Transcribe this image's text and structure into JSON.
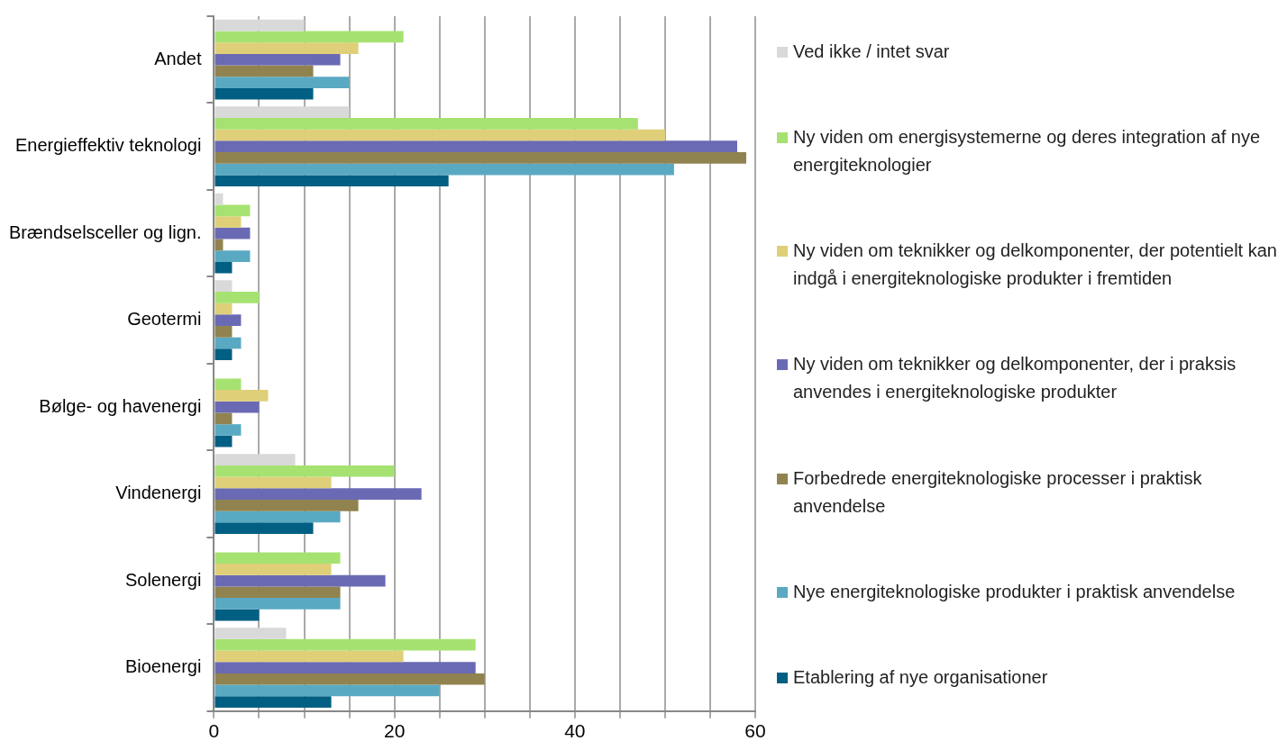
{
  "chart_data": {
    "type": "bar",
    "orientation": "horizontal",
    "categories": [
      "Andet",
      "Energieffektiv teknologi",
      "Brændselsceller og lign.",
      "Geotermi",
      "Bølge- og havenergi",
      "Vindenergi",
      "Solenergi",
      "Bioenergi"
    ],
    "series": [
      {
        "name": "Ved ikke / intet svar",
        "color": "#d9d9d9",
        "values": [
          10,
          15,
          1,
          2,
          0,
          9,
          0,
          8
        ]
      },
      {
        "name": "Ny viden om energisystemerne og deres integration af nye energiteknologier",
        "color": "#a6e271",
        "values": [
          21,
          47,
          4,
          5,
          3,
          20,
          14,
          29
        ]
      },
      {
        "name": "Ny viden om teknikker og delkomponenter, der potentielt kan indgå i energiteknologiske produkter i fremtiden",
        "color": "#dfcf79",
        "values": [
          16,
          50,
          3,
          2,
          6,
          13,
          13,
          21
        ]
      },
      {
        "name": "Ny viden om teknikker og delkomponenter, der i praksis anvendes i energiteknologiske produkter",
        "color": "#6a6ab4",
        "values": [
          14,
          58,
          4,
          3,
          5,
          23,
          19,
          29
        ]
      },
      {
        "name": "Forbedrede energiteknologiske processer i praktisk anvendelse",
        "color": "#908350",
        "values": [
          11,
          59,
          1,
          2,
          2,
          16,
          14,
          30
        ]
      },
      {
        "name": "Nye energiteknologiske produkter i praktisk anvendelse",
        "color": "#5aa9c3",
        "values": [
          15,
          51,
          4,
          3,
          3,
          14,
          14,
          25
        ]
      },
      {
        "name": "Etablering af nye organisationer",
        "color": "#005f82",
        "values": [
          11,
          26,
          2,
          2,
          2,
          11,
          5,
          13
        ]
      }
    ],
    "xlim": [
      0,
      60
    ],
    "xticks": [
      0,
      {
        "value": 5,
        "label": null
      },
      {
        "value": 10,
        "label": null
      },
      {
        "value": 15,
        "label": null
      },
      20,
      {
        "value": 25,
        "label": null
      },
      {
        "value": 30,
        "label": null
      },
      {
        "value": 35,
        "label": null
      },
      40,
      {
        "value": 45,
        "label": null
      },
      {
        "value": 50,
        "label": null
      },
      {
        "value": 55,
        "label": null
      },
      60
    ],
    "grid": "x",
    "legend": "right"
  }
}
